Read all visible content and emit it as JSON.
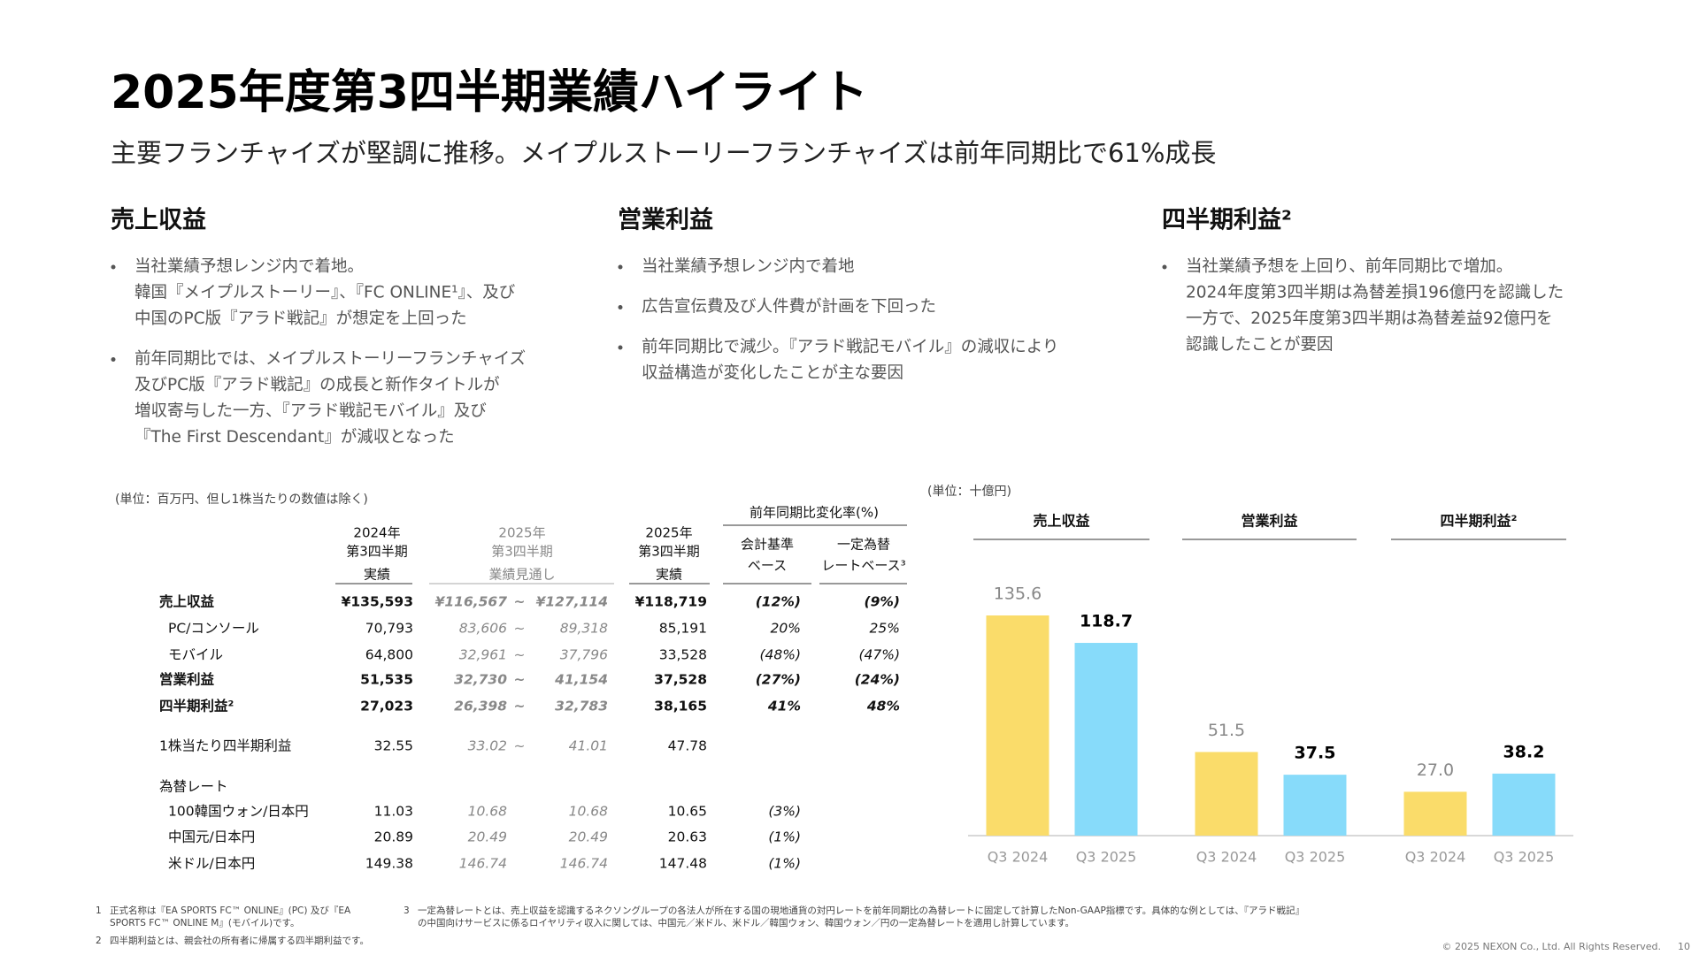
{
  "title": "2025年度第3四半期業績ハイライト",
  "subtitle": "主要フランチャイズが堅調に推移。メイプルストーリーフランチャイズは前年同期比で61%成長",
  "sections": [
    {
      "heading": "売上収益",
      "bullets": [
        [
          "当社業績予想レンジ内で着地。",
          "韓国『メイプルストーリー』、『FC ONLINE¹』、及び",
          "中国のPC版『アラド戦記』が想定を上回った"
        ],
        [
          "前年同期比では、メイプルストーリーフランチャイズ",
          "及びPC版『アラド戦記』の成長と新作タイトルが",
          "増収寄与した一方、『アラド戦記モバイル』及び",
          "『The First Descendant』が減収となった"
        ]
      ]
    },
    {
      "heading": "営業利益",
      "bullets": [
        [
          "当社業績予想レンジ内で着地"
        ],
        [
          "広告宣伝費及び人件費が計画を下回った"
        ],
        [
          "前年同期比で減少。『アラド戦記モバイル』の減収により",
          "収益構造が変化したことが主な要因"
        ]
      ]
    },
    {
      "heading": "四半期利益²",
      "bullets": [
        [
          "当社業績予想を上回り、前年同期比で増加。",
          "2024年度第3四半期は為替差損196億円を認識した",
          "一方で、2025年度第3四半期は為替差益92億円を",
          "認識したことが要因"
        ]
      ]
    }
  ],
  "table": {
    "unit": "(単位：百万円、但し1株当たりの数値は除く)",
    "group_header": "前年同期比変化率(%)",
    "headers": [
      [
        "2024年",
        "第3四半期",
        "実績"
      ],
      [
        "2025年",
        "第3四半期",
        "業績見通し"
      ],
      [
        "2025年",
        "第3四半期",
        "実績"
      ],
      [
        "会計基準",
        "ベース"
      ],
      [
        "一定為替",
        "レートベース³"
      ]
    ],
    "rows": [
      {
        "cells": [
          "売上収益",
          "¥135,593",
          "¥116,567",
          "~",
          "¥127,114",
          "¥118,719",
          "(12%)",
          "(9%)"
        ],
        "bold": true
      },
      {
        "cells": [
          "PC/コンソール",
          "70,793",
          "83,606",
          "~",
          "89,318",
          "85,191",
          "20%",
          "25%"
        ],
        "indent": true
      },
      {
        "cells": [
          "モバイル",
          "64,800",
          "32,961",
          "~",
          "37,796",
          "33,528",
          "(48%)",
          "(47%)"
        ],
        "indent": true
      },
      {
        "cells": [
          "営業利益",
          "51,535",
          "32,730",
          "~",
          "41,154",
          "37,528",
          "(27%)",
          "(24%)"
        ],
        "bold": true
      },
      {
        "cells": [
          "四半期利益²",
          "27,023",
          "26,398",
          "~",
          "32,783",
          "38,165",
          "41%",
          "48%"
        ],
        "bold": true
      },
      {
        "cells": [
          "1株当たり四半期利益",
          "32.55",
          "33.02",
          "~",
          "41.01",
          "47.78",
          null,
          null
        ]
      },
      {
        "cells": [
          "為替レート",
          null,
          null,
          null,
          null,
          null,
          null,
          null
        ]
      },
      {
        "cells": [
          "100韓国ウォン/日本円",
          "11.03",
          "10.68",
          null,
          "10.68",
          "10.65",
          "(3%)",
          null
        ],
        "indent": true
      },
      {
        "cells": [
          "中国元/日本円",
          "20.89",
          "20.49",
          null,
          "20.49",
          "20.63",
          "(1%)",
          null
        ],
        "indent": true
      },
      {
        "cells": [
          "米ドル/日本円",
          "149.38",
          "146.74",
          null,
          "146.74",
          "147.48",
          "(1%)",
          null
        ],
        "indent": true
      }
    ]
  },
  "chart_unit": "(単位：十億円)",
  "chart_data": [
    {
      "type": "bar",
      "title": "売上収益",
      "categories": [
        "Q3 2024",
        "Q3 2025"
      ],
      "values": [
        135.6,
        118.7
      ],
      "colors": [
        "#fadc6a",
        "#87dbfa"
      ]
    },
    {
      "type": "bar",
      "title": "営業利益",
      "categories": [
        "Q3 2024",
        "Q3 2025"
      ],
      "values": [
        51.5,
        37.5
      ],
      "colors": [
        "#fadc6a",
        "#87dbfa"
      ]
    },
    {
      "type": "bar",
      "title": "四半期利益²",
      "categories": [
        "Q3 2024",
        "Q3 2025"
      ],
      "values": [
        27.0,
        38.2
      ],
      "value_labels": [
        "27.0",
        "38.2"
      ],
      "colors": [
        "#fadc6a",
        "#87dbfa"
      ]
    }
  ],
  "footnotes": [
    {
      "number": "1",
      "lines": [
        "正式名称は『EA SPORTS FC™ ONLINE』(PC) 及び『EA",
        "SPORTS FC™ ONLINE M』(モバイル)です。"
      ]
    },
    {
      "number": "2",
      "lines": [
        "四半期利益とは、親会社の所有者に帰属する四半期利益です。"
      ]
    },
    {
      "number": "3",
      "lines": [
        "一定為替レートとは、売上収益を認識するネクソングループの各法人が所在する国の現地通貨の対円レートを前年同期比の為替レートに固定して計算したNon-GAAP指標です。具体的な例としては、『アラド戦記』",
        "の中国向けサービスに係るロイヤリティ収入に関しては、中国元／米ドル、米ドル／韓国ウォン、韓国ウォン／円の一定為替レートを適用し計算しています。"
      ]
    }
  ],
  "copyright": "© 2025 NEXON Co., Ltd. All Rights Reserved.",
  "page_number": "10"
}
